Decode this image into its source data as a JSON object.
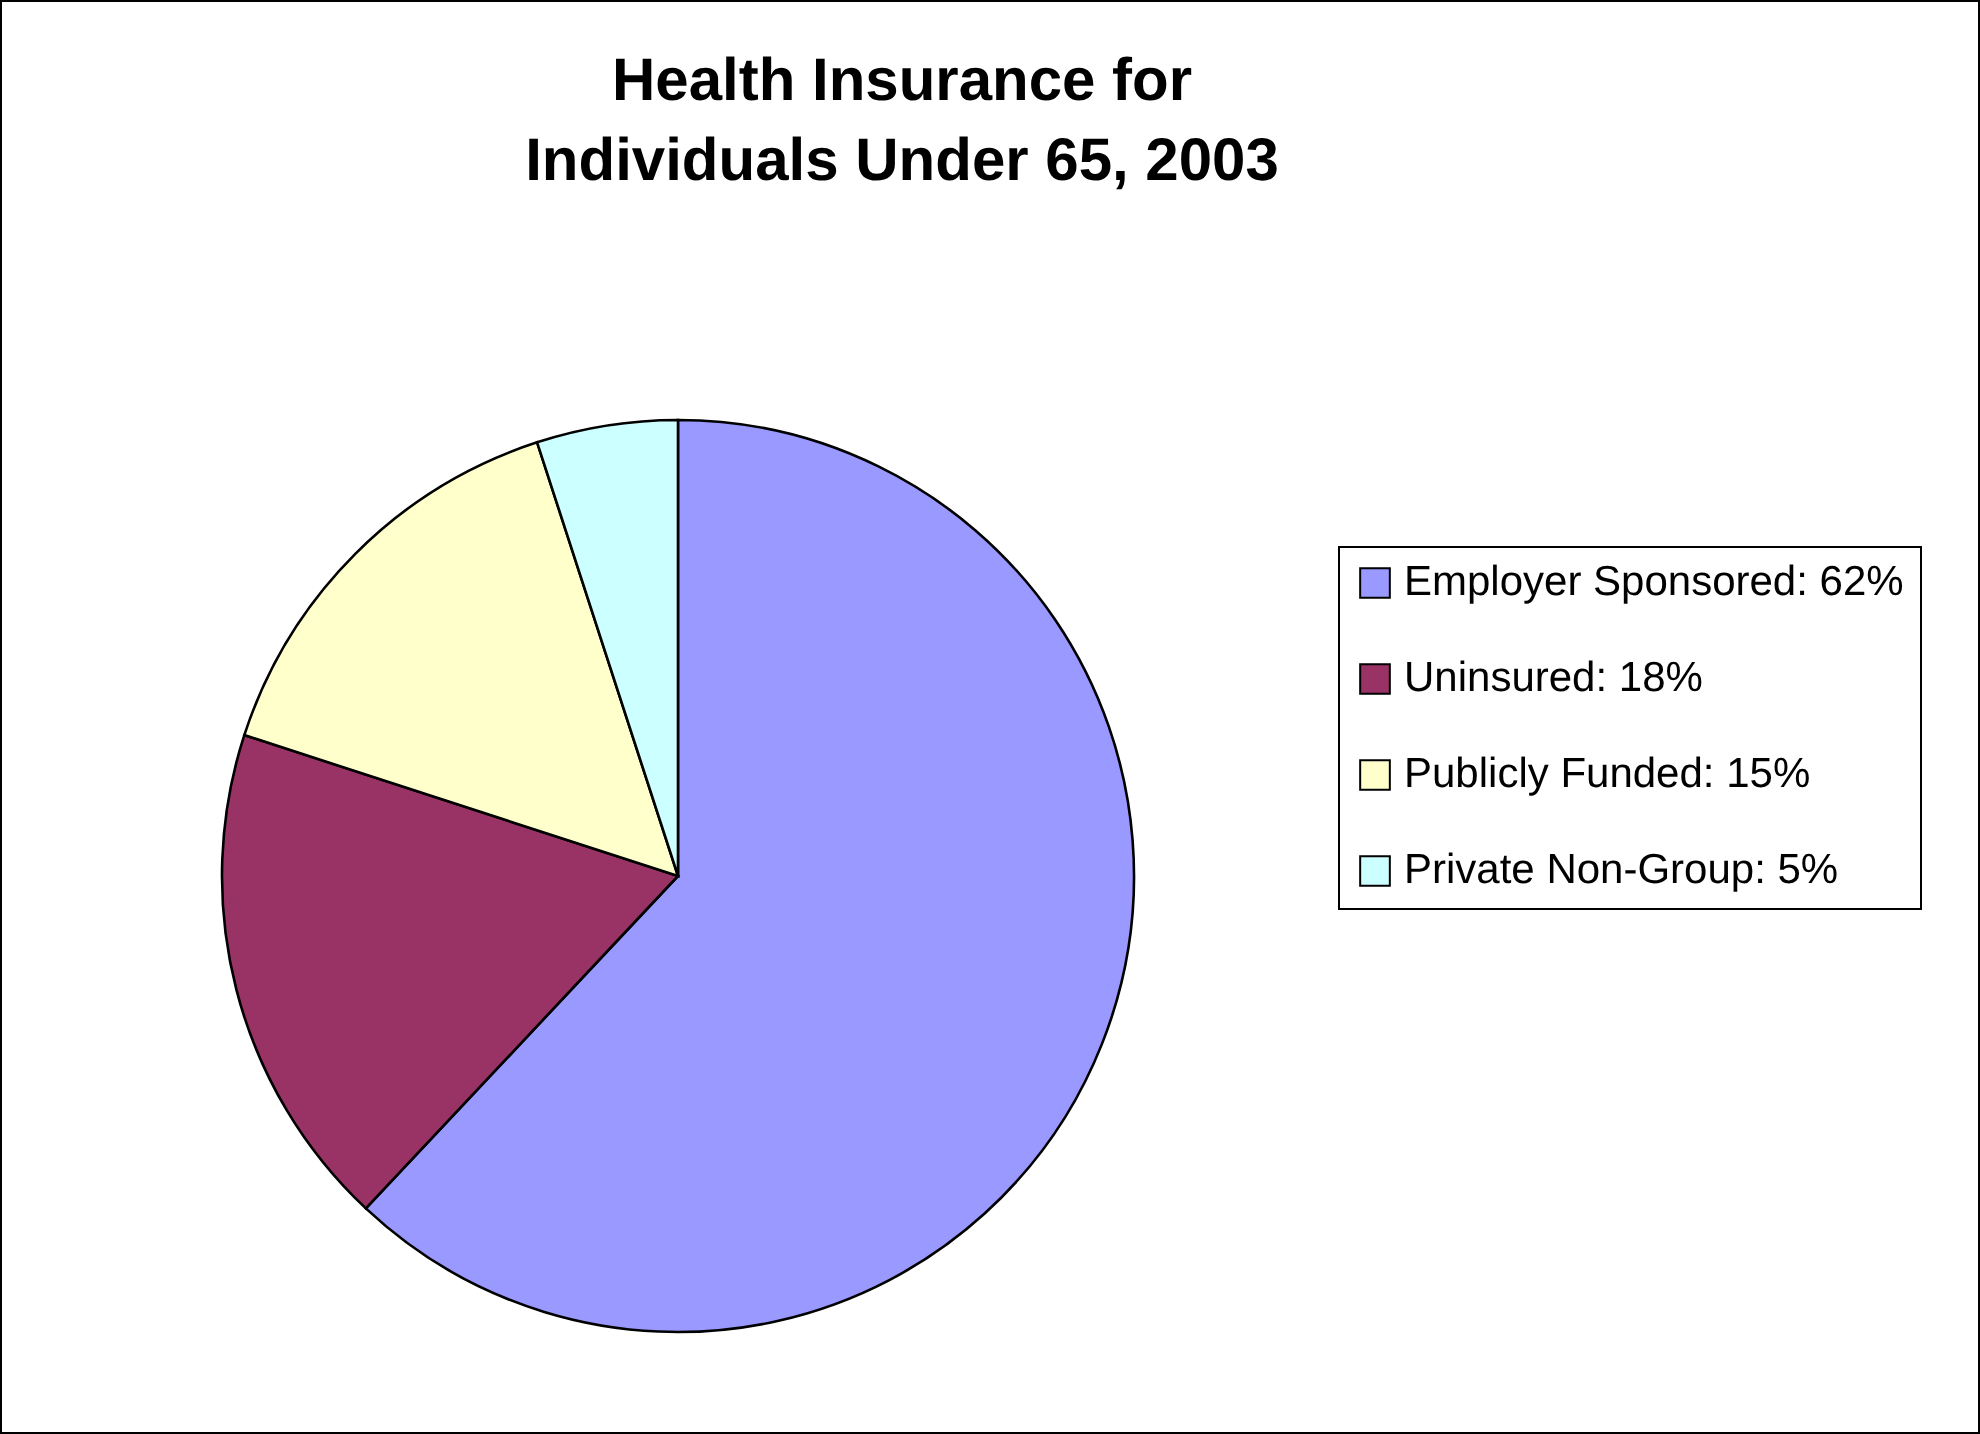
{
  "chart_data": {
    "type": "pie",
    "title": "Health Insurance for Individuals Under 65, 2003",
    "categories": [
      "Employer Sponsored: 62%",
      "Uninsured: 18%",
      "Publicly Funded: 15%",
      "Private Non-Group: 5%"
    ],
    "values": [
      62,
      18,
      15,
      5
    ],
    "colors": [
      "#9999ff",
      "#993366",
      "#ffffcc",
      "#ccffff"
    ],
    "legend": "right"
  }
}
